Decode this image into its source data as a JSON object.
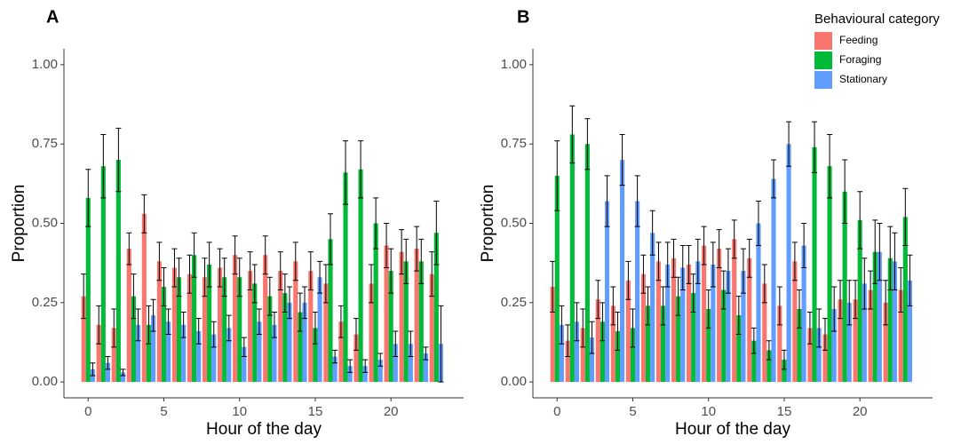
{
  "chart_data": [
    {
      "type": "bar",
      "title": "A",
      "x_label": "Hour of the day",
      "y_label": "Proportion",
      "x": [
        0,
        1,
        2,
        3,
        4,
        5,
        6,
        7,
        8,
        9,
        10,
        11,
        12,
        13,
        14,
        15,
        16,
        17,
        18,
        19,
        20,
        21,
        22,
        23
      ],
      "xlim": [
        -1.6,
        24.8
      ],
      "xticks": [
        0,
        5,
        10,
        15,
        20
      ],
      "ylim": [
        -0.05,
        1.05
      ],
      "yticks": [
        {
          "value": 0,
          "label": "0.00"
        },
        {
          "value": 0.25,
          "label": "0.25"
        },
        {
          "value": 0.5,
          "label": "0.50"
        },
        {
          "value": 0.75,
          "label": "0.75"
        },
        {
          "value": 1,
          "label": "1.00"
        }
      ],
      "grid": false,
      "series": [
        {
          "name": "Feeding",
          "color": "#f8766d",
          "values": [
            0.27,
            0.18,
            0.17,
            0.42,
            0.53,
            0.38,
            0.36,
            0.34,
            0.33,
            0.36,
            0.4,
            0.35,
            0.4,
            0.35,
            0.38,
            0.35,
            0.31,
            0.19,
            0.15,
            0.31,
            0.43,
            0.41,
            0.42,
            0.34
          ],
          "errors": [
            0.07,
            0.06,
            0.06,
            0.05,
            0.06,
            0.06,
            0.06,
            0.06,
            0.06,
            0.06,
            0.06,
            0.06,
            0.06,
            0.06,
            0.06,
            0.06,
            0.06,
            0.05,
            0.05,
            0.06,
            0.07,
            0.07,
            0.07,
            0.07
          ]
        },
        {
          "name": "Foraging",
          "color": "#00ba38",
          "values": [
            0.58,
            0.68,
            0.7,
            0.27,
            0.18,
            0.3,
            0.33,
            0.4,
            0.37,
            0.33,
            0.33,
            0.31,
            0.27,
            0.28,
            0.22,
            0.17,
            0.45,
            0.66,
            0.67,
            0.5,
            0.35,
            0.38,
            0.38,
            0.47
          ],
          "errors": [
            0.09,
            0.1,
            0.1,
            0.07,
            0.06,
            0.06,
            0.06,
            0.07,
            0.07,
            0.06,
            0.06,
            0.06,
            0.06,
            0.06,
            0.06,
            0.05,
            0.08,
            0.1,
            0.09,
            0.08,
            0.07,
            0.07,
            0.07,
            0.1
          ]
        },
        {
          "name": "Stationary",
          "color": "#619cff",
          "values": [
            0.04,
            0.06,
            0.03,
            0.18,
            0.21,
            0.19,
            0.18,
            0.16,
            0.15,
            0.17,
            0.11,
            0.19,
            0.18,
            0.25,
            0.25,
            0.33,
            0.08,
            0.05,
            0.05,
            0.07,
            0.12,
            0.12,
            0.09,
            0.12
          ],
          "errors": [
            0.02,
            0.02,
            0.01,
            0.05,
            0.05,
            0.04,
            0.04,
            0.04,
            0.04,
            0.04,
            0.03,
            0.04,
            0.04,
            0.05,
            0.05,
            0.05,
            0.02,
            0.02,
            0.02,
            0.02,
            0.04,
            0.04,
            0.02,
            0.12
          ]
        }
      ]
    },
    {
      "type": "bar",
      "title": "B",
      "x_label": "Hour of the day",
      "y_label": "Proportion",
      "legend_title": "Behavioural category",
      "legend": "top-right",
      "x": [
        0,
        1,
        2,
        3,
        4,
        5,
        6,
        7,
        8,
        9,
        10,
        11,
        12,
        13,
        14,
        15,
        16,
        17,
        18,
        19,
        20,
        21,
        22,
        23
      ],
      "xlim": [
        -1.6,
        24.8
      ],
      "xticks": [
        0,
        5,
        10,
        15,
        20
      ],
      "ylim": [
        -0.05,
        1.05
      ],
      "yticks": [
        {
          "value": 0,
          "label": "0.00"
        },
        {
          "value": 0.25,
          "label": "0.25"
        },
        {
          "value": 0.5,
          "label": "0.50"
        },
        {
          "value": 0.75,
          "label": "0.75"
        },
        {
          "value": 1,
          "label": "1.00"
        }
      ],
      "grid": false,
      "series": [
        {
          "name": "Feeding",
          "color": "#f8766d",
          "values": [
            0.3,
            0.13,
            0.17,
            0.26,
            0.24,
            0.32,
            0.34,
            0.38,
            0.39,
            0.37,
            0.43,
            0.42,
            0.45,
            0.39,
            0.31,
            0.24,
            0.38,
            0.17,
            0.15,
            0.26,
            0.26,
            0.29,
            0.25,
            0.29
          ],
          "errors": [
            0.08,
            0.05,
            0.06,
            0.06,
            0.06,
            0.06,
            0.06,
            0.06,
            0.06,
            0.06,
            0.06,
            0.06,
            0.06,
            0.06,
            0.06,
            0.06,
            0.06,
            0.05,
            0.05,
            0.06,
            0.06,
            0.06,
            0.07,
            0.07
          ]
        },
        {
          "name": "Foraging",
          "color": "#00ba38",
          "values": [
            0.65,
            0.78,
            0.75,
            0.19,
            0.16,
            0.17,
            0.24,
            0.24,
            0.27,
            0.28,
            0.23,
            0.29,
            0.21,
            0.13,
            0.1,
            0.07,
            0.23,
            0.74,
            0.68,
            0.6,
            0.51,
            0.41,
            0.39,
            0.52
          ],
          "errors": [
            0.11,
            0.09,
            0.08,
            0.06,
            0.06,
            0.06,
            0.06,
            0.06,
            0.06,
            0.06,
            0.06,
            0.06,
            0.06,
            0.04,
            0.03,
            0.03,
            0.06,
            0.08,
            0.1,
            0.1,
            0.09,
            0.1,
            0.1,
            0.09
          ]
        },
        {
          "name": "Stationary",
          "color": "#619cff",
          "values": [
            0.18,
            0.19,
            0.14,
            0.57,
            0.7,
            0.57,
            0.47,
            0.37,
            0.36,
            0.38,
            0.37,
            0.35,
            0.35,
            0.5,
            0.64,
            0.75,
            0.43,
            0.17,
            0.23,
            0.25,
            0.31,
            0.41,
            0.38,
            0.32
          ],
          "errors": [
            0.06,
            0.06,
            0.05,
            0.08,
            0.08,
            0.08,
            0.07,
            0.07,
            0.07,
            0.07,
            0.07,
            0.07,
            0.07,
            0.07,
            0.06,
            0.07,
            0.07,
            0.06,
            0.07,
            0.07,
            0.08,
            0.09,
            0.09,
            0.08
          ]
        }
      ]
    }
  ]
}
